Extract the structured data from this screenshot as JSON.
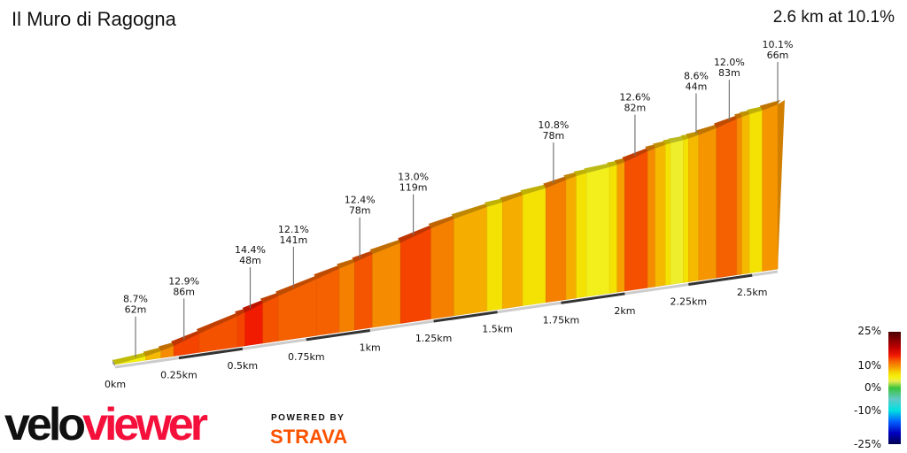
{
  "header": {
    "title": "Il Muro di Ragogna",
    "summary": "2.6 km at 10.1%"
  },
  "logo": {
    "velo": "velo",
    "viewer": "viewer",
    "powered_by": "POWERED BY",
    "strava": "STRAVA"
  },
  "legend": {
    "labels": [
      "25%",
      "10%",
      "0%",
      "-10%",
      "-25%"
    ]
  },
  "chart_data": {
    "type": "area",
    "title": "Il Muro di Ragogna",
    "xlabel": "",
    "ylabel": "",
    "xlim": [
      0,
      2.6
    ],
    "x_unit": "km",
    "x_ticks": [
      "0km",
      "0.25km",
      "0.5km",
      "0.75km",
      "1km",
      "1.25km",
      "1.5km",
      "1.75km",
      "2km",
      "2.25km",
      "2.5km"
    ],
    "x_tick_values": [
      0,
      0.25,
      0.5,
      0.75,
      1,
      1.25,
      1.5,
      1.75,
      2,
      2.25,
      2.5
    ],
    "segments_end_km": [
      0.12,
      0.18,
      0.23,
      0.33,
      0.48,
      0.51,
      0.58,
      0.64,
      0.79,
      0.88,
      0.94,
      1.01,
      1.12,
      1.24,
      1.33,
      1.46,
      1.52,
      1.6,
      1.69,
      1.77,
      1.81,
      1.85,
      1.94,
      1.97,
      2.0,
      2.09,
      2.12,
      2.16,
      2.18,
      2.23,
      2.25,
      2.29,
      2.36,
      2.44,
      2.46,
      2.49,
      2.54,
      2.6
    ],
    "segments_grade_pct": [
      5,
      8,
      10,
      13,
      12.5,
      13,
      14.4,
      12.5,
      12,
      12,
      10.5,
      12.4,
      10,
      13,
      10.5,
      8.5,
      6,
      8.5,
      6,
      10.5,
      8.5,
      6,
      4.5,
      6,
      9,
      12.6,
      10,
      8,
      6,
      4,
      6,
      8,
      9.5,
      12,
      10,
      8,
      6,
      9.5
    ],
    "annotations": [
      {
        "km": 0.08,
        "grade": "8.7%",
        "length": "62m"
      },
      {
        "km": 0.27,
        "grade": "12.9%",
        "length": "86m"
      },
      {
        "km": 0.53,
        "grade": "14.4%",
        "length": "48m"
      },
      {
        "km": 0.7,
        "grade": "12.1%",
        "length": "141m"
      },
      {
        "km": 0.96,
        "grade": "12.4%",
        "length": "78m"
      },
      {
        "km": 1.17,
        "grade": "13.0%",
        "length": "119m"
      },
      {
        "km": 1.72,
        "grade": "10.8%",
        "length": "78m"
      },
      {
        "km": 2.04,
        "grade": "12.6%",
        "length": "82m"
      },
      {
        "km": 2.28,
        "grade": "8.6%",
        "length": "44m"
      },
      {
        "km": 2.41,
        "grade": "12.0%",
        "length": "83m"
      },
      {
        "km": 2.6,
        "grade": "10.1%",
        "length": "66m"
      }
    ],
    "colorscale": [
      [
        -25,
        "#000050"
      ],
      [
        -20,
        "#0000c0"
      ],
      [
        -15,
        "#0060ff"
      ],
      [
        -10,
        "#00e0e0"
      ],
      [
        -5,
        "#60c8c8"
      ],
      [
        0,
        "#3cc43c"
      ],
      [
        3,
        "#e8ec50"
      ],
      [
        5,
        "#f5f00a"
      ],
      [
        7,
        "#f5d400"
      ],
      [
        9,
        "#f5a000"
      ],
      [
        10.5,
        "#f58000"
      ],
      [
        12,
        "#f56000"
      ],
      [
        13,
        "#f54400"
      ],
      [
        14.5,
        "#f01800"
      ],
      [
        18,
        "#c00000"
      ],
      [
        25,
        "#4a0000"
      ]
    ]
  }
}
